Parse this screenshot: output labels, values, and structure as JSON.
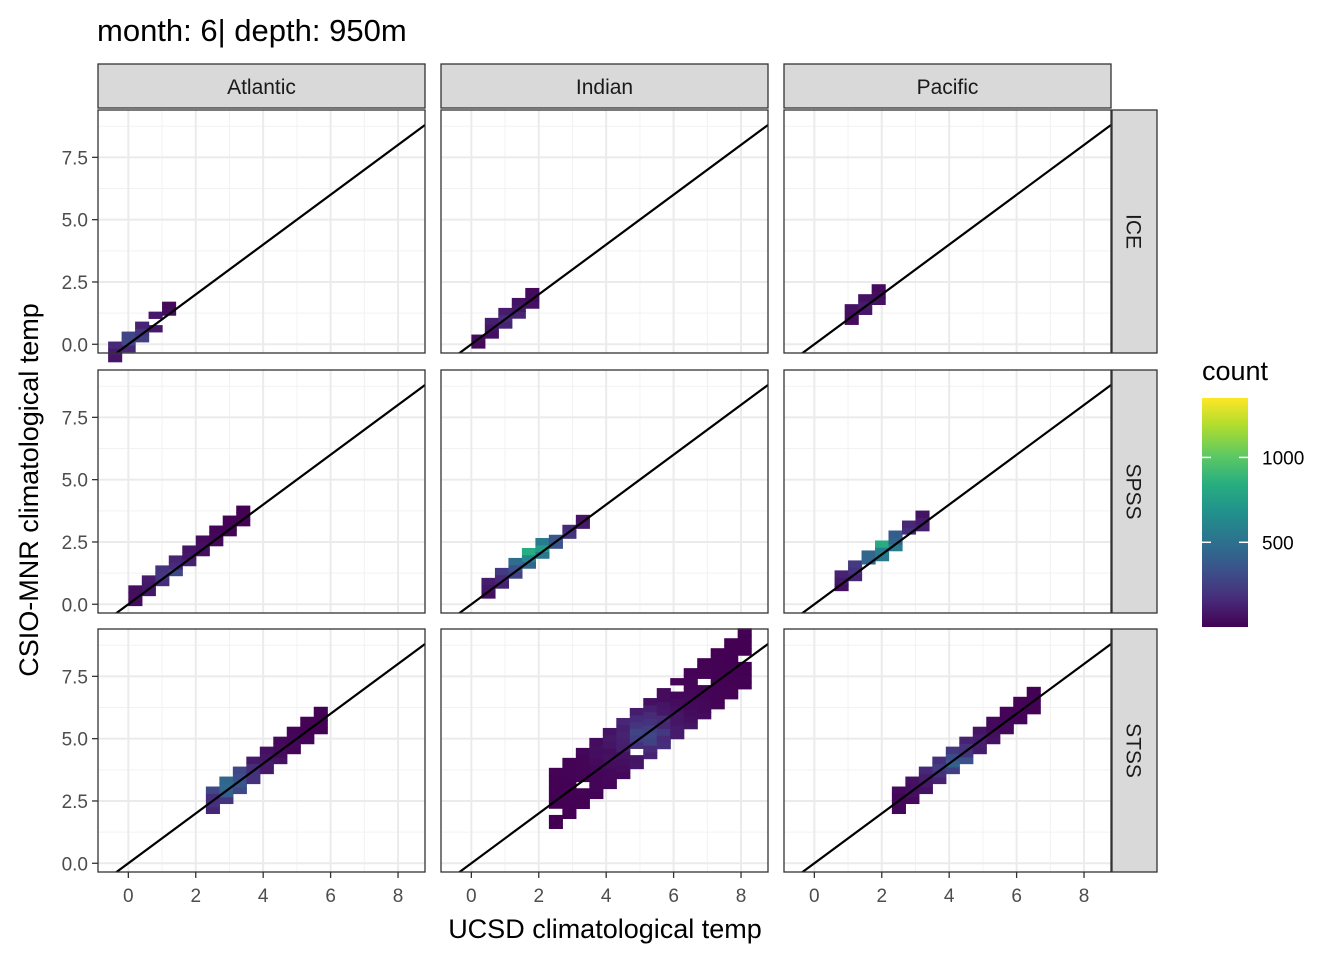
{
  "chart_data": {
    "type": "heatmap",
    "title": "month: 6| depth: 950m",
    "xlabel": "UCSD climatological temp",
    "ylabel": "CSIO-MNR climatological temp",
    "xlim": [
      -0.9,
      8.8
    ],
    "ylim": [
      -0.35,
      9.4
    ],
    "x_ticks": [
      0,
      2,
      4,
      6,
      8
    ],
    "x_tick_labels": [
      "0",
      "2",
      "4",
      "6",
      "8"
    ],
    "y_ticks": [
      0,
      2.5,
      5,
      7.5
    ],
    "y_tick_labels": [
      "0.0",
      "2.5",
      "5.0",
      "7.5"
    ],
    "grid": true,
    "bin_size": [
      0.4,
      0.27
    ],
    "reference_line": {
      "slope": 1,
      "intercept": 0
    },
    "columns": [
      "Atlantic",
      "Indian",
      "Pacific"
    ],
    "rows": [
      "ICE",
      "SPSS",
      "STSS"
    ],
    "legend": {
      "title": "count",
      "position": "right",
      "range": [
        1,
        1350
      ],
      "ticks": [
        500,
        1000
      ],
      "tick_labels": [
        "500",
        "1000"
      ],
      "colormap": "viridis"
    },
    "panels": [
      {
        "column": "Atlantic",
        "row": "ICE",
        "region": {
          "x": [
            -0.6,
            1.4
          ],
          "y_offset": [
            -0.3,
            0.35
          ],
          "peak": [
            0.1,
            0.3
          ],
          "max_count": 400
        }
      },
      {
        "column": "Indian",
        "row": "ICE",
        "region": {
          "x": [
            0.0,
            2.0
          ],
          "y_offset": [
            -0.35,
            0.35
          ],
          "peak": [
            1.2,
            1.0
          ],
          "max_count": 250
        }
      },
      {
        "column": "Pacific",
        "row": "ICE",
        "region": {
          "x": [
            0.9,
            2.0
          ],
          "y_offset": [
            -0.3,
            0.3
          ],
          "peak": [
            1.5,
            1.5
          ],
          "max_count": 120
        }
      },
      {
        "column": "Atlantic",
        "row": "SPSS",
        "region": {
          "x": [
            0.0,
            3.4
          ],
          "y_offset": [
            -0.25,
            0.3
          ],
          "peak": [
            1.3,
            1.3
          ],
          "max_count": 350
        }
      },
      {
        "column": "Indian",
        "row": "SPSS",
        "region": {
          "x": [
            0.3,
            3.4
          ],
          "y_offset": [
            -0.25,
            0.3
          ],
          "peak": [
            1.8,
            2.1
          ],
          "max_count": 1250
        }
      },
      {
        "column": "Pacific",
        "row": "SPSS",
        "region": {
          "x": [
            0.6,
            3.1
          ],
          "y_offset": [
            -0.25,
            0.3
          ],
          "peak": [
            2.0,
            2.3
          ],
          "max_count": 1100
        }
      },
      {
        "column": "Atlantic",
        "row": "STSS",
        "region": {
          "x": [
            2.3,
            5.8
          ],
          "y_offset": [
            -0.5,
            0.5
          ],
          "peak": [
            3.0,
            3.2
          ],
          "max_count": 700
        }
      },
      {
        "column": "Indian",
        "row": "STSS",
        "region": {
          "x": [
            2.3,
            8.3
          ],
          "y_offset": [
            -1.1,
            1.2
          ],
          "peak": [
            5.2,
            5.2
          ],
          "max_count": 450
        }
      },
      {
        "column": "Pacific",
        "row": "STSS",
        "region": {
          "x": [
            2.3,
            6.6
          ],
          "y_offset": [
            -0.5,
            0.5
          ],
          "peak": [
            4.2,
            4.0
          ],
          "max_count": 550
        }
      }
    ]
  }
}
